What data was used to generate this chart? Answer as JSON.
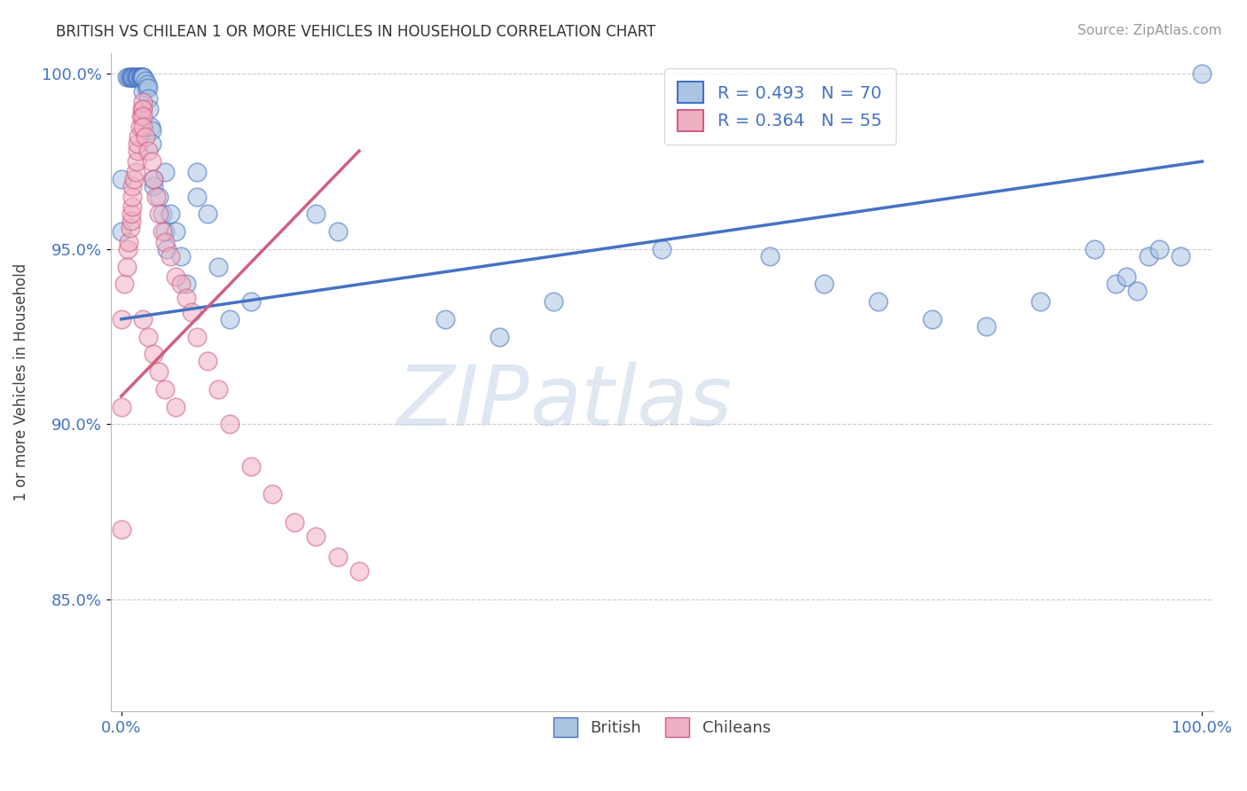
{
  "title": "BRITISH VS CHILEAN 1 OR MORE VEHICLES IN HOUSEHOLD CORRELATION CHART",
  "source": "Source: ZipAtlas.com",
  "ylabel": "1 or more Vehicles in Household",
  "xlim": [
    -0.01,
    1.01
  ],
  "ylim": [
    0.818,
    1.006
  ],
  "ytick_labels": [
    "85.0%",
    "90.0%",
    "95.0%",
    "100.0%"
  ],
  "ytick_values": [
    0.85,
    0.9,
    0.95,
    1.0
  ],
  "xtick_labels": [
    "0.0%",
    "100.0%"
  ],
  "xtick_values": [
    0.0,
    1.0
  ],
  "british_R": "0.493",
  "british_N": "70",
  "chilean_R": "0.364",
  "chilean_N": "55",
  "british_color": "#aac4e2",
  "chilean_color": "#f0b0c4",
  "british_line_color": "#4472c4",
  "chilean_line_color": "#d06080",
  "legend_text_color": "#4472c4",
  "watermark_zip": "ZIP",
  "watermark_atlas": "atlas",
  "british_line_x0": 0.0,
  "british_line_y0": 0.93,
  "british_line_x1": 1.0,
  "british_line_y1": 0.975,
  "chilean_line_x0": 0.0,
  "chilean_line_y0": 0.908,
  "chilean_line_x1": 0.22,
  "chilean_line_y1": 0.978,
  "british_x": [
    0.0,
    0.0,
    0.005,
    0.007,
    0.008,
    0.009,
    0.01,
    0.01,
    0.01,
    0.012,
    0.013,
    0.014,
    0.015,
    0.015,
    0.016,
    0.017,
    0.018,
    0.018,
    0.019,
    0.02,
    0.02,
    0.02,
    0.02,
    0.02,
    0.022,
    0.023,
    0.024,
    0.025,
    0.025,
    0.026,
    0.027,
    0.028,
    0.028,
    0.03,
    0.03,
    0.035,
    0.038,
    0.04,
    0.04,
    0.042,
    0.045,
    0.05,
    0.055,
    0.06,
    0.07,
    0.07,
    0.08,
    0.09,
    0.1,
    0.12,
    0.18,
    0.2,
    0.3,
    0.35,
    0.4,
    0.5,
    0.6,
    0.65,
    0.7,
    0.75,
    0.8,
    0.85,
    0.9,
    0.92,
    0.93,
    0.94,
    0.95,
    0.96,
    0.98,
    1.0
  ],
  "british_y": [
    0.97,
    0.955,
    0.999,
    0.999,
    0.999,
    0.999,
    0.999,
    0.999,
    0.999,
    0.999,
    0.999,
    0.999,
    0.999,
    0.999,
    0.999,
    0.999,
    0.999,
    0.999,
    0.999,
    0.999,
    0.999,
    0.999,
    0.999,
    0.995,
    0.998,
    0.996,
    0.997,
    0.996,
    0.993,
    0.99,
    0.985,
    0.984,
    0.98,
    0.968,
    0.97,
    0.965,
    0.96,
    0.955,
    0.972,
    0.95,
    0.96,
    0.955,
    0.948,
    0.94,
    0.972,
    0.965,
    0.96,
    0.945,
    0.93,
    0.935,
    0.96,
    0.955,
    0.93,
    0.925,
    0.935,
    0.95,
    0.948,
    0.94,
    0.935,
    0.93,
    0.928,
    0.935,
    0.95,
    0.94,
    0.942,
    0.938,
    0.948,
    0.95,
    0.948,
    1.0
  ],
  "chilean_x": [
    0.0,
    0.0,
    0.0,
    0.003,
    0.005,
    0.006,
    0.007,
    0.008,
    0.009,
    0.009,
    0.01,
    0.01,
    0.01,
    0.012,
    0.013,
    0.014,
    0.015,
    0.015,
    0.016,
    0.017,
    0.018,
    0.019,
    0.02,
    0.02,
    0.02,
    0.02,
    0.022,
    0.025,
    0.028,
    0.03,
    0.032,
    0.035,
    0.038,
    0.04,
    0.045,
    0.05,
    0.055,
    0.06,
    0.065,
    0.07,
    0.08,
    0.09,
    0.1,
    0.12,
    0.14,
    0.16,
    0.18,
    0.2,
    0.22,
    0.02,
    0.025,
    0.03,
    0.035,
    0.04,
    0.05
  ],
  "chilean_y": [
    0.87,
    0.905,
    0.93,
    0.94,
    0.945,
    0.95,
    0.952,
    0.956,
    0.958,
    0.96,
    0.962,
    0.965,
    0.968,
    0.97,
    0.972,
    0.975,
    0.978,
    0.98,
    0.982,
    0.985,
    0.988,
    0.99,
    0.992,
    0.99,
    0.988,
    0.985,
    0.982,
    0.978,
    0.975,
    0.97,
    0.965,
    0.96,
    0.955,
    0.952,
    0.948,
    0.942,
    0.94,
    0.936,
    0.932,
    0.925,
    0.918,
    0.91,
    0.9,
    0.888,
    0.88,
    0.872,
    0.868,
    0.862,
    0.858,
    0.93,
    0.925,
    0.92,
    0.915,
    0.91,
    0.905
  ]
}
